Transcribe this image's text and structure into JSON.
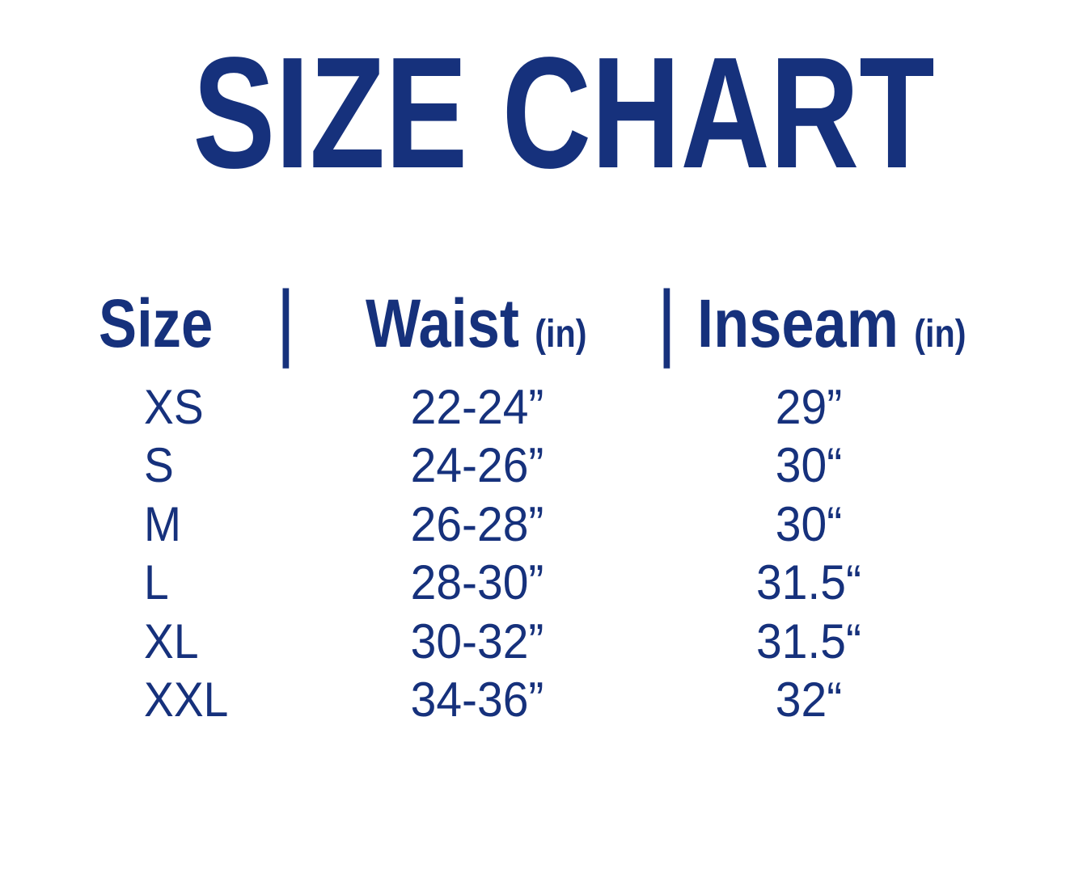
{
  "colors": {
    "text_navy": "#16317c",
    "background": "#ffffff"
  },
  "chart_data": {
    "type": "table",
    "title": "SIZE CHART",
    "separator": "|",
    "columns": [
      {
        "label": "Size",
        "unit": ""
      },
      {
        "label": "Waist",
        "unit": "(in)"
      },
      {
        "label": "Inseam",
        "unit": "(in)"
      }
    ],
    "rows": [
      {
        "size": "XS",
        "waist": "22-24”",
        "inseam": "29”"
      },
      {
        "size": "S",
        "waist": "24-26”",
        "inseam": "30“"
      },
      {
        "size": "M",
        "waist": "26-28”",
        "inseam": "30“"
      },
      {
        "size": "L",
        "waist": "28-30”",
        "inseam": "31.5“"
      },
      {
        "size": "XL",
        "waist": "30-32”",
        "inseam": "31.5“"
      },
      {
        "size": "XXL",
        "waist": "34-36”",
        "inseam": "32“"
      }
    ]
  }
}
